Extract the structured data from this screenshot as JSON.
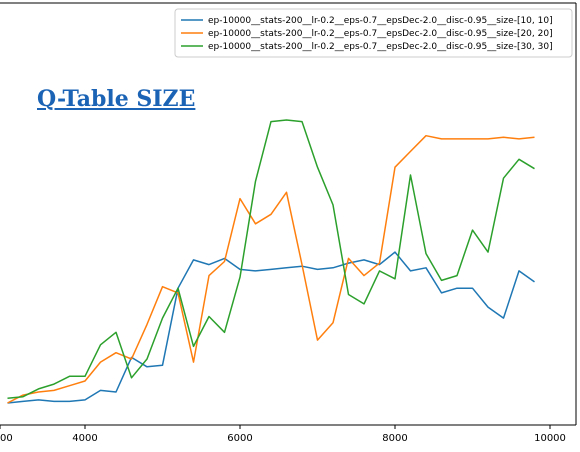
{
  "overlay": {
    "title": "Q-Table SIZE"
  },
  "chart_data": {
    "type": "line",
    "xlim": [
      -1000,
      10300
    ],
    "ylim": [
      0,
      100
    ],
    "xticks": [
      4000,
      6000,
      8000,
      10000
    ],
    "xtick_labels": [
      "4000",
      "6000",
      "8000",
      "10000"
    ],
    "grid": false,
    "legend_position": "top-right",
    "series": [
      {
        "name": "ep-10000__stats-200__lr-0.2__eps-0.7__epsDec-2.0__disc-0.95__size-[10, 10]",
        "color": "#1f77b4",
        "x": [
          3000,
          3200,
          3400,
          3600,
          3800,
          4000,
          4200,
          4400,
          4600,
          4800,
          5000,
          5200,
          5400,
          5600,
          5800,
          6000,
          6200,
          6400,
          6600,
          6800,
          7000,
          7200,
          7400,
          7600,
          7800,
          8000,
          8200,
          8400,
          8600,
          8800,
          9000,
          9200,
          9400,
          9600,
          9800
        ],
        "y": [
          0.0,
          0.5,
          1.0,
          0.5,
          0.5,
          1.0,
          4.0,
          3.5,
          14.5,
          11.5,
          12.0,
          36.5,
          45.5,
          44.0,
          46.0,
          42.5,
          42.0,
          42.5,
          43.0,
          43.5,
          42.5,
          43.0,
          44.5,
          45.5,
          44.0,
          48.0,
          42.0,
          43.0,
          35.0,
          36.5,
          36.5,
          30.5,
          27.0,
          42.0,
          38.5
        ]
      },
      {
        "name": "ep-10000__stats-200__lr-0.2__eps-0.7__epsDec-2.0__disc-0.95__size-[20, 20]",
        "color": "#ff7f0e",
        "x": [
          3000,
          3200,
          3400,
          3600,
          3800,
          4000,
          4200,
          4400,
          4600,
          4800,
          5000,
          5200,
          5400,
          5600,
          5800,
          6000,
          6200,
          6400,
          6600,
          6800,
          7000,
          7200,
          7400,
          7600,
          7800,
          8000,
          8200,
          8400,
          8600,
          8800,
          9000,
          9200,
          9400,
          9600,
          9800
        ],
        "y": [
          0.0,
          2.5,
          3.5,
          4.0,
          5.5,
          7.0,
          13.0,
          16.0,
          14.0,
          25.0,
          37.0,
          35.0,
          13.0,
          40.5,
          45.0,
          65.0,
          57.0,
          60.0,
          67.0,
          44.0,
          20.0,
          25.5,
          46.0,
          40.5,
          44.5,
          75.0,
          80.0,
          85.0,
          84.0,
          84.0,
          84.0,
          84.0,
          84.5,
          84.0,
          84.5
        ]
      },
      {
        "name": "ep-10000__stats-200__lr-0.2__eps-0.7__epsDec-2.0__disc-0.95__size-[30, 30]",
        "color": "#2ca02c",
        "x": [
          3000,
          3200,
          3400,
          3600,
          3800,
          4000,
          4200,
          4400,
          4600,
          4800,
          5000,
          5200,
          5400,
          5600,
          5800,
          6000,
          6200,
          6400,
          6600,
          6800,
          7000,
          7200,
          7400,
          7600,
          7800,
          8000,
          8200,
          8400,
          8600,
          8800,
          9000,
          9200,
          9400,
          9600,
          9800
        ],
        "y": [
          1.5,
          2.0,
          4.5,
          6.0,
          8.5,
          8.5,
          18.5,
          22.5,
          8.0,
          14.0,
          27.0,
          36.5,
          18.0,
          27.5,
          22.5,
          40.0,
          70.5,
          89.5,
          90.0,
          89.5,
          75.0,
          63.0,
          34.5,
          31.5,
          42.0,
          39.5,
          72.5,
          47.5,
          39.0,
          40.5,
          55.0,
          48.0,
          71.5,
          77.5,
          74.5
        ]
      }
    ]
  }
}
